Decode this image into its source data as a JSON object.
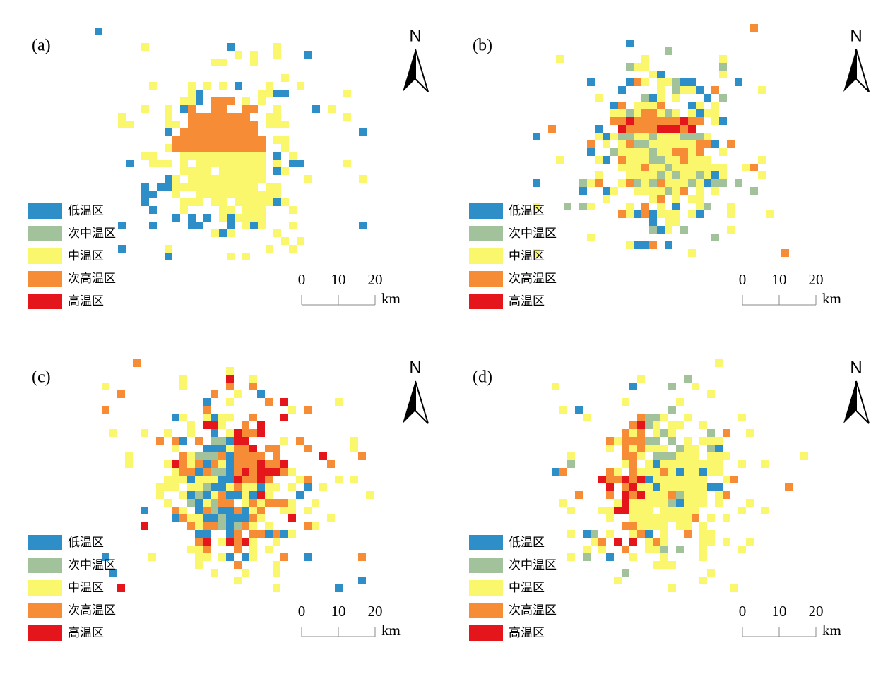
{
  "panels": [
    {
      "label": "(a)",
      "north": "N",
      "scale": {
        "ticks": [
          0,
          10,
          20
        ],
        "unit": "km"
      },
      "legend": [
        {
          "name": "低温区",
          "color": "#2e8fc8"
        },
        {
          "name": "次中温区",
          "color": "#a2c29c"
        },
        {
          "name": "中温区",
          "color": "#fbf76c"
        },
        {
          "name": "次高温区",
          "color": "#f68c35"
        },
        {
          "name": "高温区",
          "color": "#e4161c"
        }
      ]
    },
    {
      "label": "(b)",
      "north": "N",
      "scale": {
        "ticks": [
          0,
          10,
          20
        ],
        "unit": "km"
      },
      "legend": [
        {
          "name": "低温区",
          "color": "#2e8fc8"
        },
        {
          "name": "次中温区",
          "color": "#a2c29c"
        },
        {
          "name": "中温区",
          "color": "#fbf76c"
        },
        {
          "name": "次高温区",
          "color": "#f68c35"
        },
        {
          "name": "高温区",
          "color": "#e4161c"
        }
      ]
    },
    {
      "label": "(c)",
      "north": "N",
      "scale": {
        "ticks": [
          0,
          10,
          20
        ],
        "unit": "km"
      },
      "legend": [
        {
          "name": "低温区",
          "color": "#2e8fc8"
        },
        {
          "name": "次中温区",
          "color": "#a2c29c"
        },
        {
          "name": "中温区",
          "color": "#fbf76c"
        },
        {
          "name": "次高温区",
          "color": "#f68c35"
        },
        {
          "name": "高温区",
          "color": "#e4161c"
        }
      ]
    },
    {
      "label": "(d)",
      "north": "N",
      "scale": {
        "ticks": [
          0,
          10,
          20
        ],
        "unit": "km"
      },
      "legend": [
        {
          "name": "低温区",
          "color": "#2e8fc8"
        },
        {
          "name": "次中温区",
          "color": "#a2c29c"
        },
        {
          "name": "中温区",
          "color": "#fbf76c"
        },
        {
          "name": "次高温区",
          "color": "#f68c35"
        },
        {
          "name": "高温区",
          "color": "#e4161c"
        }
      ]
    }
  ]
}
